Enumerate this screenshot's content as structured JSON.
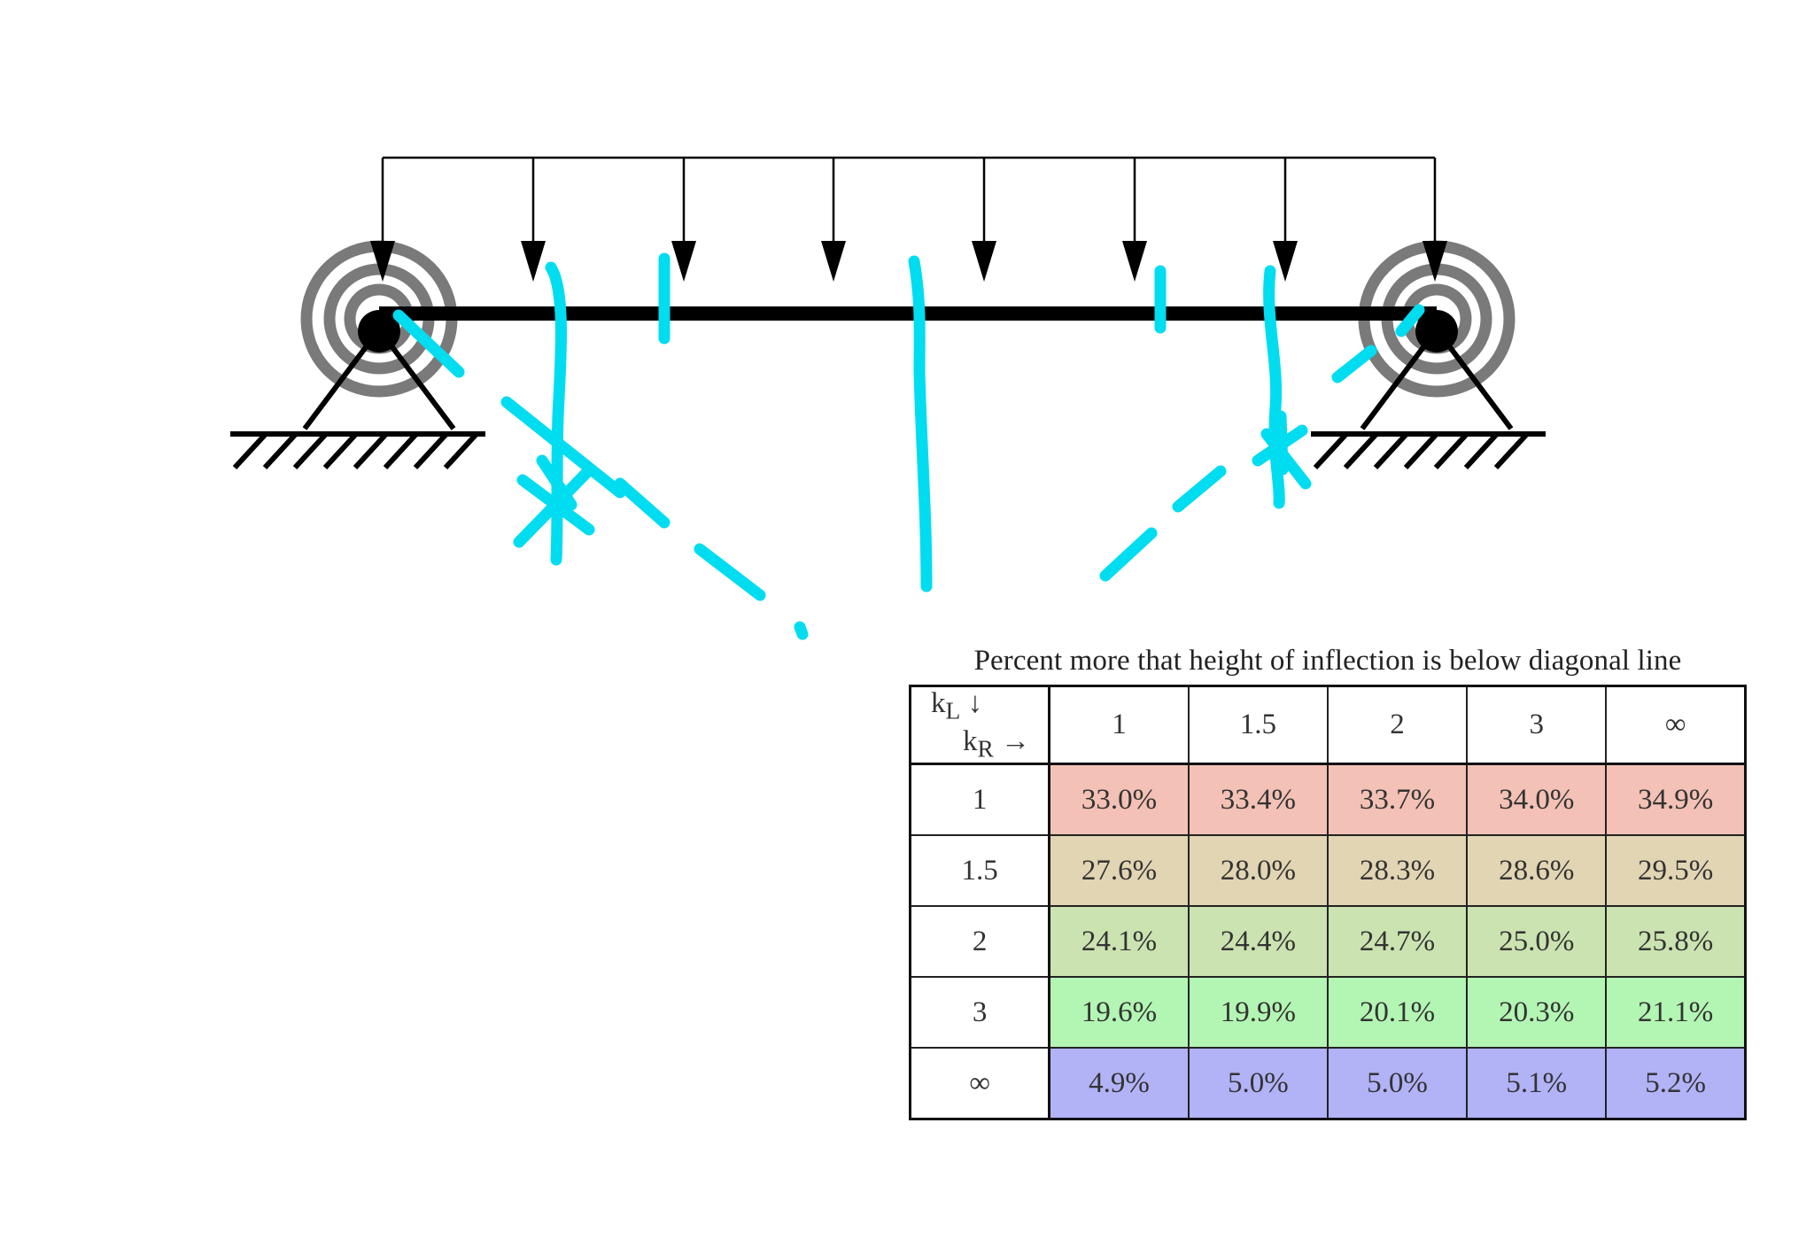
{
  "table": {
    "title": "Percent more that height of inflection is below diagonal line",
    "corner": {
      "k_left": "k",
      "k_left_sub": "L",
      "k_left_arrow": "↓",
      "k_right": "k",
      "k_right_sub": "R",
      "k_right_arrow": "→"
    },
    "col_headers": [
      "1",
      "1.5",
      "2",
      "3",
      "∞"
    ],
    "rows": [
      {
        "label": "1",
        "values": [
          "33.0%",
          "33.4%",
          "33.7%",
          "34.0%",
          "34.9%"
        ]
      },
      {
        "label": "1.5",
        "values": [
          "27.6%",
          "28.0%",
          "28.3%",
          "28.6%",
          "29.5%"
        ]
      },
      {
        "label": "2",
        "values": [
          "24.1%",
          "24.4%",
          "24.7%",
          "25.0%",
          "25.8%"
        ]
      },
      {
        "label": "3",
        "values": [
          "19.6%",
          "19.9%",
          "20.1%",
          "20.3%",
          "21.1%"
        ]
      },
      {
        "label": "∞",
        "values": [
          "4.9%",
          "5.0%",
          "5.0%",
          "5.1%",
          "5.2%"
        ]
      }
    ],
    "row_colors": [
      "#f3c1b5",
      "#e2d5b3",
      "#cbe3b0",
      "#b3f5b3",
      "#b2b2f7"
    ]
  },
  "colors": {
    "beam": "#000000",
    "spring": "#7a7a7a",
    "annotation": "#00dcf0"
  },
  "icons": {
    "support": "pinned-support-with-rotational-spring",
    "load": "uniform-distributed-load-arrows"
  }
}
